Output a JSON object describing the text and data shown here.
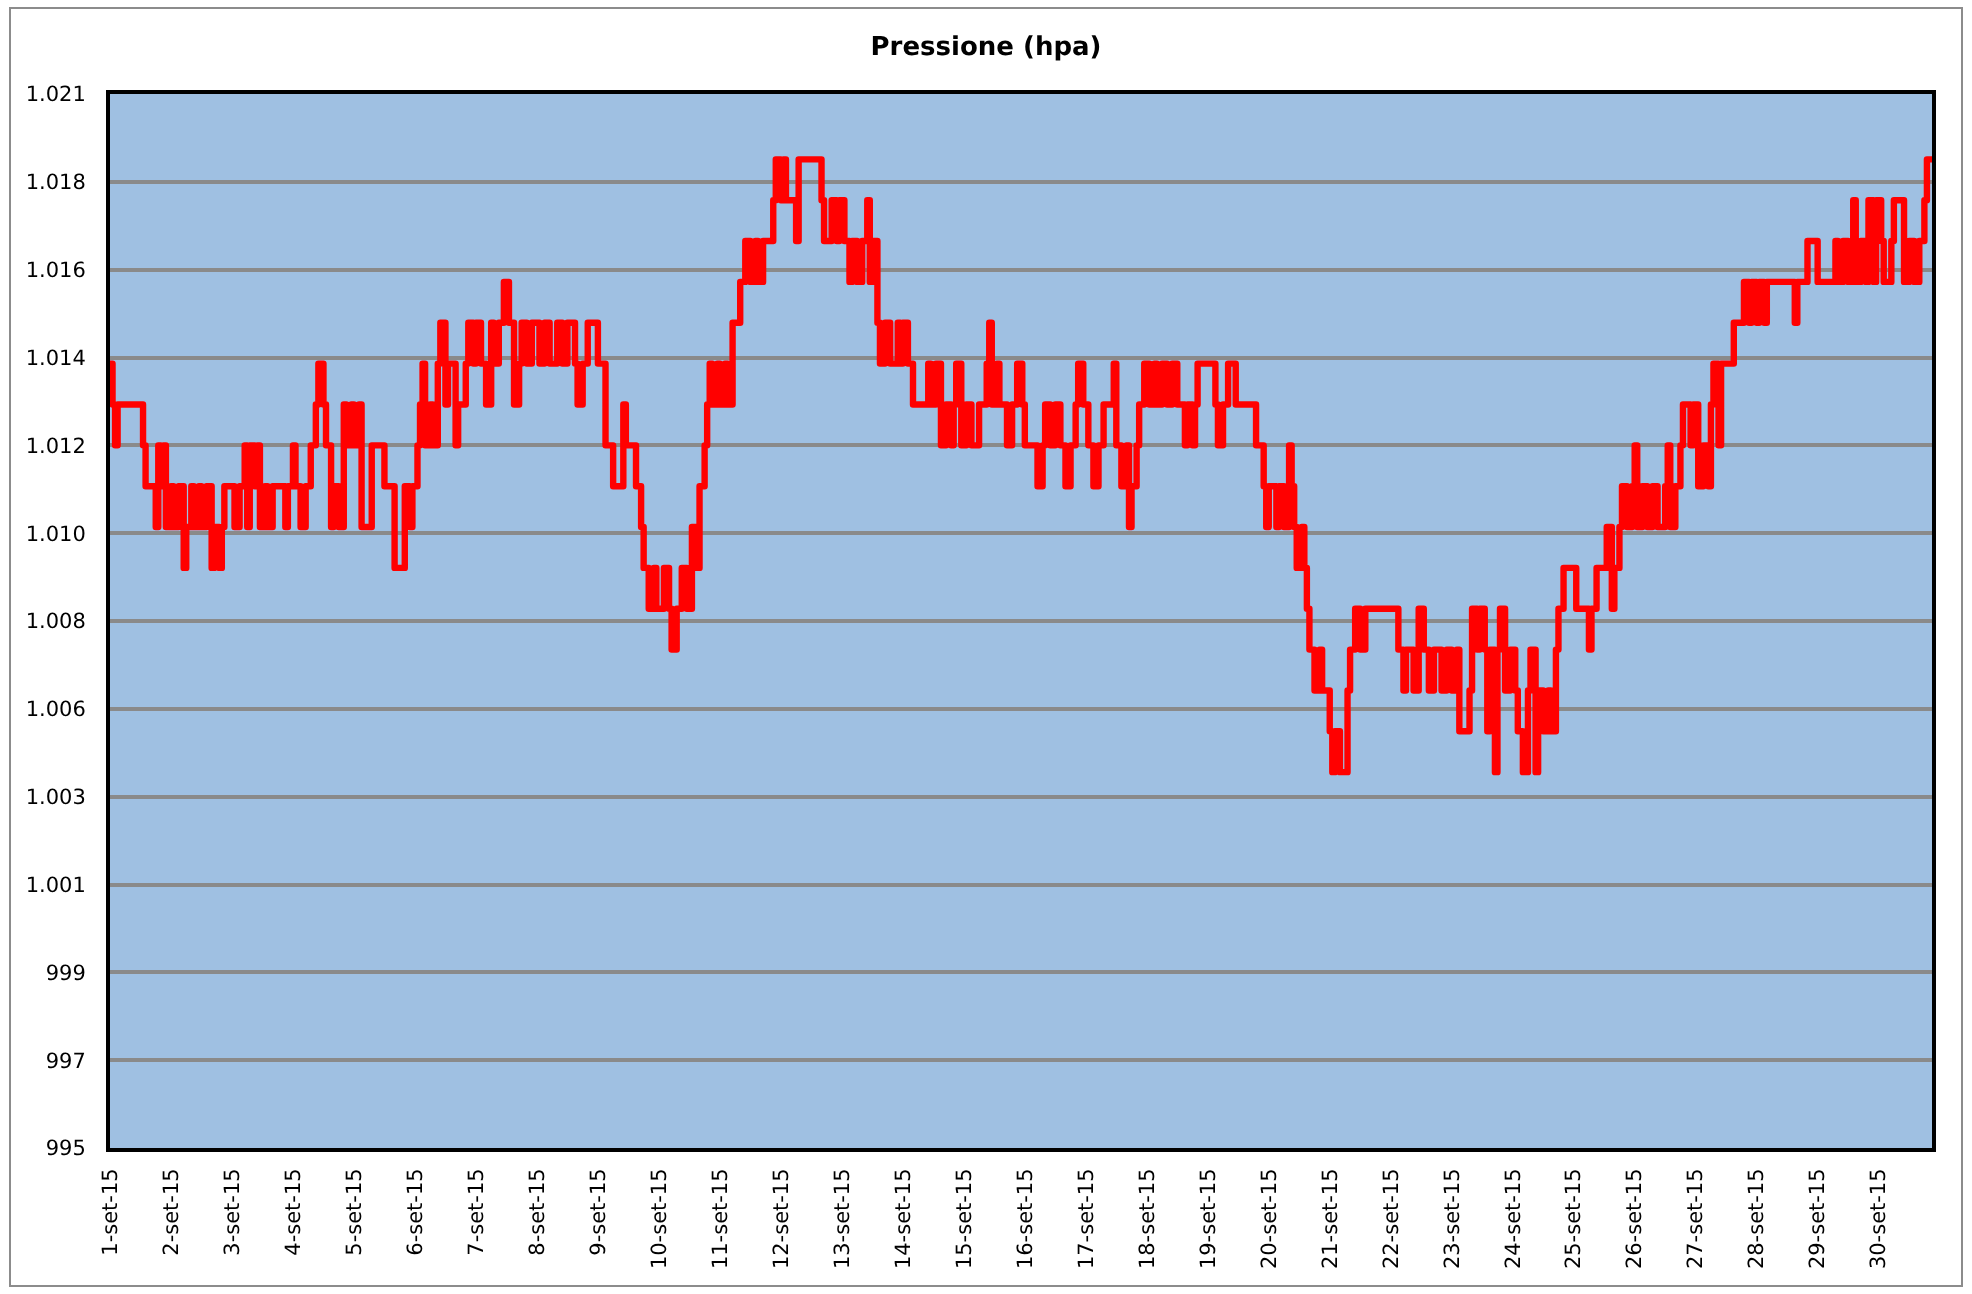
{
  "chart_data": {
    "type": "step",
    "title": "Pressione (hpa)",
    "x": [
      "--09-01T00:00",
      "--09-01T01:00",
      "--09-01T02:00",
      "--09-01T03:00",
      "--09-01T11:00",
      "--09-01T13:00",
      "--09-01T14:00",
      "--09-01T17:00",
      "--09-01T18:00",
      "--09-01T19:00",
      "--09-01T20:00",
      "--09-01T21:00",
      "--09-01T22:00",
      "--09-02T00:00",
      "--09-02T01:00",
      "--09-02T03:00",
      "--09-02T05:00",
      "--09-02T06:00",
      "--09-02T08:00",
      "--09-02T09:00",
      "--09-02T11:00",
      "--09-02T12:00",
      "--09-02T14:00",
      "--09-02T16:00",
      "--09-02T17:00",
      "--09-02T19:00",
      "--09-02T20:00",
      "--09-02T21:00",
      "--09-02T23:00",
      "--09-03T01:00",
      "--09-03T03:00",
      "--09-03T05:00",
      "--09-03T06:00",
      "--09-03T07:00",
      "--09-03T09:00",
      "--09-03T10:00",
      "--09-03T11:00",
      "--09-03T13:00",
      "--09-03T14:00",
      "--09-03T16:00",
      "--09-03T20:00",
      "--09-03T21:00",
      "--09-03T22:00",
      "--09-04T00:00",
      "--09-04T01:00",
      "--09-04T03:00",
      "--09-04T05:00",
      "--09-04T07:00",
      "--09-04T09:00",
      "--09-04T10:00",
      "--09-04T12:00",
      "--09-04T13:00",
      "--09-04T15:00",
      "--09-04T16:00",
      "--09-04T18:00",
      "--09-04T20:00",
      "--09-04T21:00",
      "--09-04T23:00",
      "--09-05T00:00",
      "--09-05T02:00",
      "--09-05T03:00",
      "--09-05T06:00",
      "--09-05T07:00",
      "--09-05T11:00",
      "--09-05T12:00",
      "--09-05T15:00",
      "--09-05T16:00",
      "--09-05T19:00",
      "--09-05T20:00",
      "--09-05T22:00",
      "--09-05T23:00",
      "--09-06T01:00",
      "--09-06T02:00",
      "--09-06T03:00",
      "--09-06T04:00",
      "--09-06T06:00",
      "--09-06T07:00",
      "--09-06T09:00",
      "--09-06T10:00",
      "--09-06T12:00",
      "--09-06T13:00",
      "--09-06T16:00",
      "--09-06T17:00",
      "--09-06T20:00",
      "--09-06T21:00",
      "--09-06T23:00",
      "--09-07T00:00",
      "--09-07T02:00",
      "--09-07T04:00",
      "--09-07T06:00",
      "--09-07T07:00",
      "--09-07T09:00",
      "--09-07T11:00",
      "--09-07T13:00",
      "--09-07T15:00",
      "--09-07T17:00",
      "--09-07T18:00",
      "--09-07T20:00",
      "--09-07T22:00",
      "--09-08T01:00",
      "--09-08T03:00",
      "--09-08T05:00",
      "--09-08T08:00",
      "--09-08T10:00",
      "--09-08T12:00",
      "--09-08T15:00",
      "--09-08T16:00",
      "--09-08T18:00",
      "--09-08T20:00",
      "--09-08T23:00",
      "--09-09T00:00",
      "--09-09T03:00",
      "--09-09T06:00",
      "--09-09T08:00",
      "--09-09T10:00",
      "--09-09T11:00",
      "--09-09T14:00",
      "--09-09T15:00",
      "--09-09T17:00",
      "--09-09T18:00",
      "--09-09T20:00",
      "--09-09T22:00",
      "--09-09T23:00",
      "--09-10T02:00",
      "--09-10T04:00",
      "--09-10T05:00",
      "--09-10T07:00",
      "--09-10T09:00",
      "--09-10T11:00",
      "--09-10T13:00",
      "--09-10T15:00",
      "--09-10T16:00",
      "--09-10T18:00",
      "--09-10T19:00",
      "--09-10T20:00",
      "--09-10T21:00",
      "--09-10T23:00",
      "--09-11T00:00",
      "--09-11T02:00",
      "--09-11T03:00",
      "--09-11T05:00",
      "--09-11T07:00",
      "--09-11T08:00",
      "--09-11T10:00",
      "--09-11T12:00",
      "--09-11T14:00",
      "--09-11T15:00",
      "--09-11T17:00",
      "--09-11T20:00",
      "--09-11T21:00",
      "--09-11T22:00",
      "--09-12T00:00",
      "--09-12T01:00",
      "--09-12T02:00",
      "--09-12T05:00",
      "--09-12T06:00",
      "--09-12T07:00",
      "--09-12T15:00",
      "--09-12T16:00",
      "--09-12T17:00",
      "--09-12T20:00",
      "--09-12T22:00",
      "--09-12T23:00",
      "--09-13T01:00",
      "--09-13T03:00",
      "--09-13T04:00",
      "--09-13T06:00",
      "--09-13T08:00",
      "--09-13T10:00",
      "--09-13T11:00",
      "--09-13T12:00",
      "--09-13T14:00",
      "--09-13T15:00",
      "--09-13T17:00",
      "--09-13T19:00",
      "--09-13T22:00",
      "--09-13T23:00",
      "--09-14T00:00",
      "--09-14T02:00",
      "--09-14T04:00",
      "--09-14T09:00",
      "--09-14T10:00",
      "--09-14T11:00",
      "--09-14T13:00",
      "--09-14T15:00",
      "--09-14T17:00",
      "--09-14T19:00",
      "--09-14T20:00",
      "--09-14T21:00",
      "--09-14T23:00",
      "--09-15T01:00",
      "--09-15T03:00",
      "--09-15T06:00",
      "--09-15T09:00",
      "--09-15T10:00",
      "--09-15T11:00",
      "--09-15T13:00",
      "--09-15T14:00",
      "--09-15T17:00",
      "--09-15T19:00",
      "--09-15T21:00",
      "--09-15T23:00",
      "--09-16T00:00",
      "--09-16T04:00",
      "--09-16T05:00",
      "--09-16T07:00",
      "--09-16T08:00",
      "--09-16T10:00",
      "--09-16T12:00",
      "--09-16T14:00",
      "--09-16T16:00",
      "--09-16T18:00",
      "--09-16T20:00",
      "--09-16T21:00",
      "--09-16T23:00",
      "--09-17T01:00",
      "--09-17T03:00",
      "--09-17T05:00",
      "--09-17T07:00",
      "--09-17T10:00",
      "--09-17T11:00",
      "--09-17T12:00",
      "--09-17T14:00",
      "--09-17T16:00",
      "--09-17T17:00",
      "--09-17T18:00",
      "--09-17T20:00",
      "--09-17T21:00",
      "--09-17T23:00",
      "--09-18T01:00",
      "--09-18T03:00",
      "--09-18T04:00",
      "--09-18T06:00",
      "--09-18T08:00",
      "--09-18T10:00",
      "--09-18T12:00",
      "--09-18T15:00",
      "--09-18T16:00",
      "--09-18T18:00",
      "--09-18T19:00",
      "--09-18T20:00",
      "--09-18T23:00",
      "--09-19T02:00",
      "--09-19T03:00",
      "--09-19T04:00",
      "--09-19T06:00",
      "--09-19T08:00",
      "--09-19T10:00",
      "--09-19T11:00",
      "--09-19T18:00",
      "--09-19T19:00",
      "--09-19T21:00",
      "--09-19T22:00",
      "--09-19T23:00",
      "--09-20T00:00",
      "--09-20T03:00",
      "--09-20T04:00",
      "--09-20T06:00",
      "--09-20T08:00",
      "--09-20T09:00",
      "--09-20T10:00",
      "--09-20T11:00",
      "--09-20T13:00",
      "--09-20T14:00",
      "--09-20T15:00",
      "--09-20T16:00",
      "--09-20T18:00",
      "--09-20T20:00",
      "--09-20T21:00",
      "--09-20T23:00",
      "--09-21T00:00",
      "--09-21T01:00",
      "--09-21T02:00",
      "--09-21T04:00",
      "--09-21T06:00",
      "--09-21T07:00",
      "--09-21T08:00",
      "--09-21T10:00",
      "--09-21T12:00",
      "--09-21T14:00",
      "--09-22T02:00",
      "--09-22T03:00",
      "--09-22T05:00",
      "--09-22T06:00",
      "--09-22T09:00",
      "--09-22T11:00",
      "--09-22T13:00",
      "--09-22T15:00",
      "--09-22T17:00",
      "--09-22T20:00",
      "--09-22T22:00",
      "--09-23T00:00",
      "--09-23T02:00",
      "--09-23T03:00",
      "--09-23T05:00",
      "--09-23T07:00",
      "--09-23T08:00",
      "--09-23T10:00",
      "--09-23T11:00",
      "--09-23T13:00",
      "--09-23T14:00",
      "--09-23T15:00",
      "--09-23T17:00",
      "--09-23T18:00",
      "--09-23T19:00",
      "--09-23T21:00",
      "--09-23T23:00",
      "--09-24T01:00",
      "--09-24T02:00",
      "--09-24T04:00",
      "--09-24T06:00",
      "--09-24T07:00",
      "--09-24T09:00",
      "--09-24T10:00",
      "--09-24T12:00",
      "--09-24T14:00",
      "--09-24T15:00",
      "--09-24T17:00",
      "--09-24T18:00",
      "--09-24T20:00",
      "--09-24T23:00",
      "--09-25T01:00",
      "--09-25T05:00",
      "--09-25T06:00",
      "--09-25T07:00",
      "--09-25T09:00",
      "--09-25T12:00",
      "--09-25T13:00",
      "--09-25T15:00",
      "--09-25T16:00",
      "--09-25T18:00",
      "--09-25T19:00",
      "--09-25T21:00",
      "--09-25T23:00",
      "--09-26T00:00",
      "--09-26T01:00",
      "--09-26T03:00",
      "--09-26T05:00",
      "--09-26T07:00",
      "--09-26T09:00",
      "--09-26T12:00",
      "--09-26T13:00",
      "--09-26T14:00",
      "--09-26T16:00",
      "--09-26T18:00",
      "--09-26T19:00",
      "--09-26T22:00",
      "--09-26T23:00",
      "--09-27T01:00",
      "--09-27T03:00",
      "--09-27T05:00",
      "--09-27T06:00",
      "--09-27T07:00",
      "--09-27T09:00",
      "--09-27T10:00",
      "--09-27T14:00",
      "--09-27T15:00",
      "--09-27T18:00",
      "--09-27T19:00",
      "--09-27T21:00",
      "--09-27T22:00",
      "--09-28T00:00",
      "--09-28T01:00",
      "--09-28T03:00",
      "--09-28T04:00",
      "--09-28T14:00",
      "--09-28T15:00",
      "--09-28T16:00",
      "--09-28T19:00",
      "--09-28T20:00",
      "--09-28T23:00",
      "--09-29T00:00",
      "--09-29T05:00",
      "--09-29T07:00",
      "--09-29T08:00",
      "--09-29T10:00",
      "--09-29T12:00",
      "--09-29T14:00",
      "--09-29T15:00",
      "--09-29T17:00",
      "--09-29T19:00",
      "--09-29T20:00",
      "--09-29T22:00",
      "--09-29T23:00",
      "--09-30T01:00",
      "--09-30T02:00",
      "--09-30T05:00",
      "--09-30T06:00",
      "--09-30T09:00",
      "--09-30T10:00",
      "--09-30T12:00",
      "--09-30T14:00",
      "--09-30T16:00",
      "--09-30T18:00",
      "--09-30T19:00",
      "--09-30T21:00"
    ],
    "series": [
      {
        "color": "#ff0000",
        "values": [
          1014,
          1013,
          1012,
          1013,
          1013,
          1012,
          1011,
          1011,
          1010,
          1012,
          1011,
          1012,
          1010,
          1011,
          1010,
          1011,
          1009,
          1010,
          1011,
          1010,
          1011,
          1010,
          1011,
          1009,
          1010,
          1009,
          1010,
          1011,
          1011,
          1010,
          1011,
          1012,
          1010,
          1012,
          1011,
          1012,
          1010,
          1011,
          1010,
          1011,
          1011,
          1010,
          1011,
          1012,
          1011,
          1010,
          1011,
          1012,
          1013,
          1014,
          1013,
          1012,
          1010,
          1011,
          1010,
          1013,
          1012,
          1013,
          1012,
          1013,
          1010,
          1010,
          1012,
          1012,
          1011,
          1011,
          1009,
          1009,
          1011,
          1010,
          1011,
          1012,
          1013,
          1014,
          1012,
          1013,
          1012,
          1014,
          1015,
          1013,
          1014,
          1012,
          1013,
          1014,
          1015,
          1014,
          1015,
          1014,
          1013,
          1015,
          1014,
          1015,
          1016,
          1015,
          1013,
          1014,
          1015,
          1014,
          1015,
          1014,
          1015,
          1014,
          1015,
          1014,
          1015,
          1014,
          1013,
          1014,
          1015,
          1015,
          1014,
          1012,
          1011,
          1011,
          1013,
          1012,
          1012,
          1011,
          1010,
          1009,
          1008,
          1009,
          1008,
          1009,
          1008,
          1007,
          1008,
          1009,
          1008,
          1010,
          1009,
          1011,
          1012,
          1013,
          1014,
          1013,
          1014,
          1013,
          1014,
          1013,
          1015,
          1015,
          1016,
          1017,
          1016,
          1017,
          1016,
          1017,
          1017,
          1018,
          1019,
          1018,
          1019,
          1018,
          1018,
          1017,
          1019,
          1019,
          1018,
          1017,
          1018,
          1017,
          1018,
          1017,
          1016,
          1017,
          1016,
          1017,
          1018,
          1016,
          1017,
          1015,
          1014,
          1015,
          1014,
          1015,
          1014,
          1015,
          1014,
          1013,
          1013,
          1014,
          1013,
          1014,
          1012,
          1013,
          1012,
          1013,
          1014,
          1012,
          1013,
          1012,
          1013,
          1014,
          1015,
          1013,
          1014,
          1013,
          1012,
          1013,
          1014,
          1013,
          1012,
          1012,
          1011,
          1012,
          1013,
          1012,
          1013,
          1012,
          1011,
          1012,
          1013,
          1014,
          1013,
          1012,
          1011,
          1012,
          1013,
          1013,
          1014,
          1012,
          1011,
          1012,
          1010,
          1011,
          1012,
          1013,
          1014,
          1013,
          1014,
          1013,
          1014,
          1013,
          1014,
          1013,
          1012,
          1013,
          1012,
          1013,
          1014,
          1014,
          1014,
          1013,
          1012,
          1013,
          1014,
          1014,
          1013,
          1013,
          1012,
          1012,
          1011,
          1010,
          1011,
          1010,
          1011,
          1010,
          1012,
          1011,
          1010,
          1009,
          1010,
          1009,
          1008,
          1007,
          1006,
          1007,
          1006,
          1006,
          1005,
          1004,
          1005,
          1004,
          1004,
          1006,
          1007,
          1008,
          1007,
          1008,
          1008,
          1007,
          1006,
          1007,
          1006,
          1008,
          1007,
          1006,
          1007,
          1006,
          1007,
          1006,
          1007,
          1005,
          1005,
          1006,
          1008,
          1007,
          1008,
          1007,
          1005,
          1007,
          1004,
          1007,
          1008,
          1006,
          1007,
          1006,
          1005,
          1004,
          1006,
          1007,
          1004,
          1006,
          1005,
          1006,
          1005,
          1007,
          1008,
          1009,
          1009,
          1008,
          1008,
          1007,
          1008,
          1009,
          1009,
          1010,
          1008,
          1009,
          1010,
          1011,
          1010,
          1011,
          1012,
          1010,
          1011,
          1010,
          1011,
          1010,
          1011,
          1012,
          1010,
          1011,
          1012,
          1013,
          1012,
          1013,
          1011,
          1012,
          1011,
          1013,
          1014,
          1012,
          1014,
          1014,
          1015,
          1015,
          1016,
          1015,
          1016,
          1015,
          1016,
          1015,
          1016,
          1016,
          1015,
          1016,
          1016,
          1017,
          1017,
          1016,
          1016,
          1017,
          1016,
          1017,
          1016,
          1018,
          1016,
          1017,
          1016,
          1018,
          1016,
          1018,
          1017,
          1016,
          1017,
          1018,
          1018,
          1016,
          1017,
          1016,
          1017,
          1018,
          1019,
          1019
        ]
      }
    ],
    "xlim": [
      "--09-01T00:00",
      "--09-30T21:00"
    ],
    "xticks": [
      {
        "value": "--09-01",
        "label": "1-set-15"
      },
      {
        "value": "--09-02",
        "label": "2-set-15"
      },
      {
        "value": "--09-03",
        "label": "3-set-15"
      },
      {
        "value": "--09-04",
        "label": "4-set-15"
      },
      {
        "value": "--09-05",
        "label": "5-set-15"
      },
      {
        "value": "--09-06",
        "label": "6-set-15"
      },
      {
        "value": "--09-07",
        "label": "7-set-15"
      },
      {
        "value": "--09-08",
        "label": "8-set-15"
      },
      {
        "value": "--09-09",
        "label": "9-set-15"
      },
      {
        "value": "--09-10",
        "label": "10-set-15"
      },
      {
        "value": "--09-11",
        "label": "11-set-15"
      },
      {
        "value": "--09-12",
        "label": "12-set-15"
      },
      {
        "value": "--09-13",
        "label": "13-set-15"
      },
      {
        "value": "--09-14",
        "label": "14-set-15"
      },
      {
        "value": "--09-15",
        "label": "15-set-15"
      },
      {
        "value": "--09-16",
        "label": "16-set-15"
      },
      {
        "value": "--09-17",
        "label": "17-set-15"
      },
      {
        "value": "--09-18",
        "label": "18-set-15"
      },
      {
        "value": "--09-19",
        "label": "19-set-15"
      },
      {
        "value": "--09-20",
        "label": "20-set-15"
      },
      {
        "value": "--09-21",
        "label": "21-set-15"
      },
      {
        "value": "--09-22",
        "label": "22-set-15"
      },
      {
        "value": "--09-23",
        "label": "23-set-15"
      },
      {
        "value": "--09-24",
        "label": "24-set-15"
      },
      {
        "value": "--09-25",
        "label": "25-set-15"
      },
      {
        "value": "--09-26",
        "label": "26-set-15"
      },
      {
        "value": "--09-27",
        "label": "27-set-15"
      },
      {
        "value": "--09-28",
        "label": "28-set-15"
      },
      {
        "value": "--09-29",
        "label": "29-set-15"
      },
      {
        "value": "--09-30",
        "label": "30-set-15"
      }
    ],
    "ylim": [
      994.8,
      1020.6
    ],
    "yticks": [
      {
        "value": 994.8,
        "label": "995"
      },
      {
        "value": 996.95,
        "label": "997"
      },
      {
        "value": 999.1,
        "label": "999"
      },
      {
        "value": 1001.25,
        "label": "1.001"
      },
      {
        "value": 1003.4,
        "label": "1.003"
      },
      {
        "value": 1005.55,
        "label": "1.006"
      },
      {
        "value": 1007.7,
        "label": "1.008"
      },
      {
        "value": 1009.85,
        "label": "1.010"
      },
      {
        "value": 1012,
        "label": "1.012"
      },
      {
        "value": 1014.15,
        "label": "1.014"
      },
      {
        "value": 1016.3,
        "label": "1.016"
      },
      {
        "value": 1018.45,
        "label": "1.018"
      },
      {
        "value": 1020.6,
        "label": "1.021"
      }
    ],
    "grid": "y"
  }
}
